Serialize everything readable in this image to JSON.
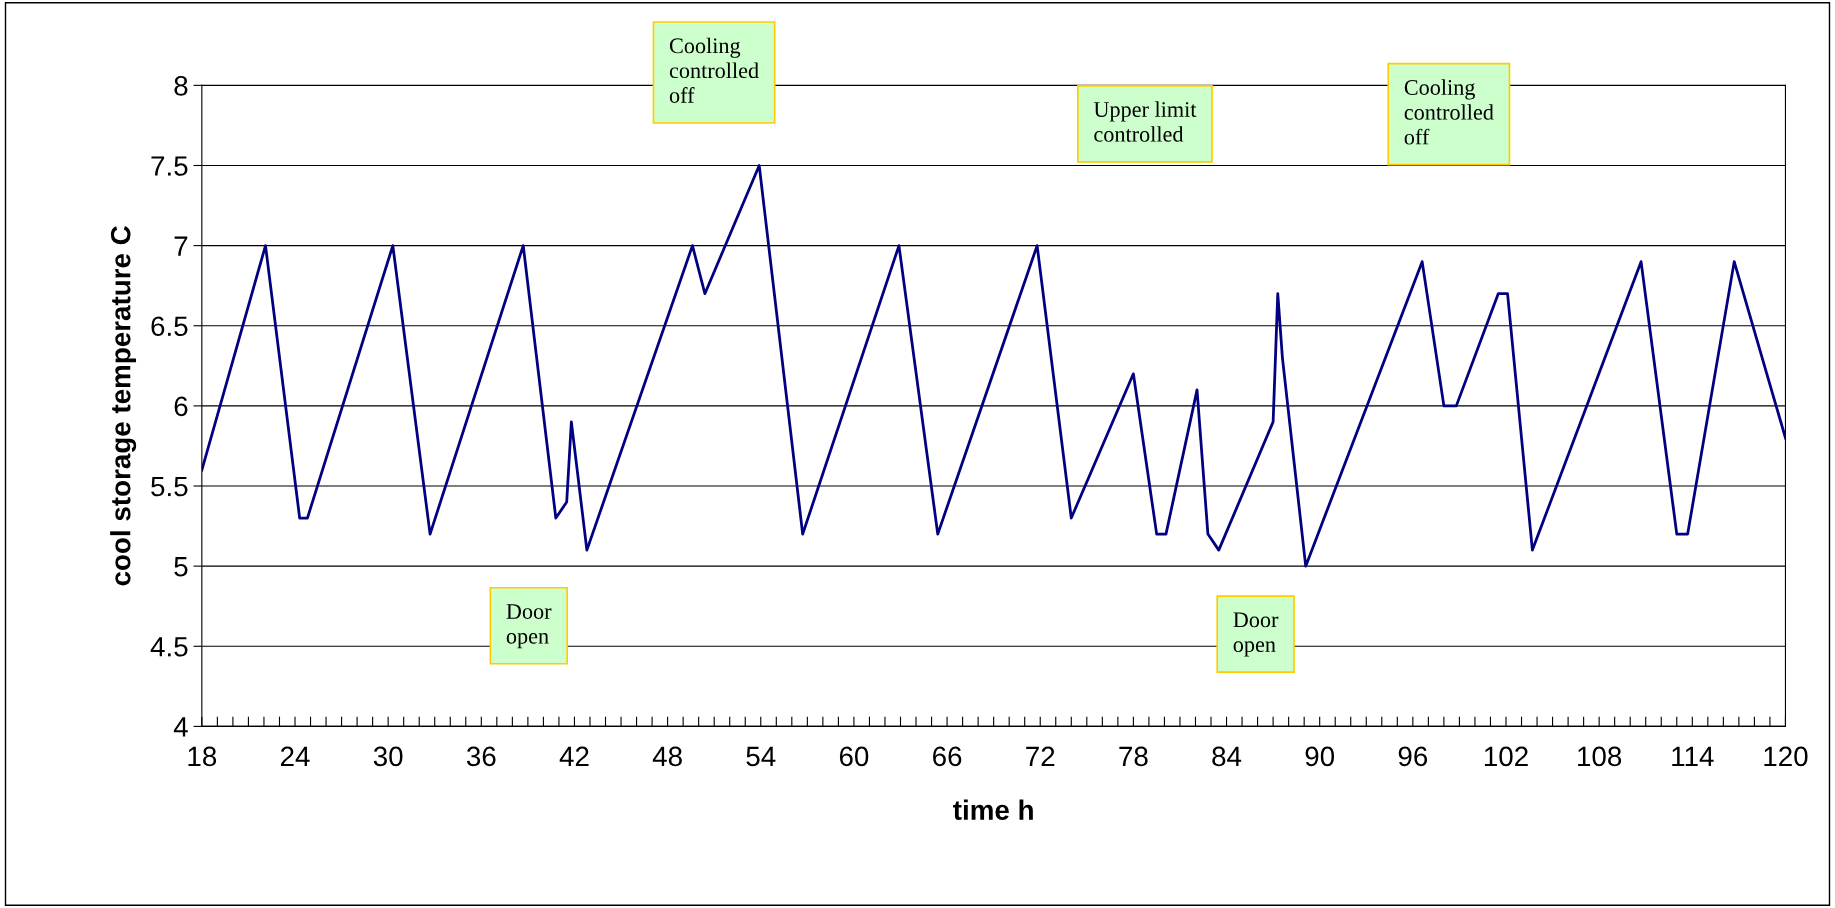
{
  "chart_data": {
    "type": "line",
    "xlabel": "time h",
    "ylabel": "cool storage temperature C",
    "xlim": [
      18,
      120
    ],
    "ylim": [
      4,
      8
    ],
    "xticks": [
      18,
      {
        "value": 19,
        "label": null
      },
      {
        "value": 20,
        "label": null
      },
      {
        "value": 21,
        "label": null
      },
      {
        "value": 22,
        "label": null
      },
      {
        "value": 23,
        "label": null
      },
      24,
      {
        "value": 25,
        "label": null
      },
      {
        "value": 26,
        "label": null
      },
      {
        "value": 27,
        "label": null
      },
      {
        "value": 28,
        "label": null
      },
      {
        "value": 29,
        "label": null
      },
      30,
      {
        "value": 31,
        "label": null
      },
      {
        "value": 32,
        "label": null
      },
      {
        "value": 33,
        "label": null
      },
      {
        "value": 34,
        "label": null
      },
      {
        "value": 35,
        "label": null
      },
      36,
      {
        "value": 37,
        "label": null
      },
      {
        "value": 38,
        "label": null
      },
      {
        "value": 39,
        "label": null
      },
      {
        "value": 40,
        "label": null
      },
      {
        "value": 41,
        "label": null
      },
      42,
      {
        "value": 43,
        "label": null
      },
      {
        "value": 44,
        "label": null
      },
      {
        "value": 45,
        "label": null
      },
      {
        "value": 46,
        "label": null
      },
      {
        "value": 47,
        "label": null
      },
      48,
      {
        "value": 49,
        "label": null
      },
      {
        "value": 50,
        "label": null
      },
      {
        "value": 51,
        "label": null
      },
      {
        "value": 52,
        "label": null
      },
      {
        "value": 53,
        "label": null
      },
      54,
      {
        "value": 55,
        "label": null
      },
      {
        "value": 56,
        "label": null
      },
      {
        "value": 57,
        "label": null
      },
      {
        "value": 58,
        "label": null
      },
      {
        "value": 59,
        "label": null
      },
      60,
      {
        "value": 61,
        "label": null
      },
      {
        "value": 62,
        "label": null
      },
      {
        "value": 63,
        "label": null
      },
      {
        "value": 64,
        "label": null
      },
      {
        "value": 65,
        "label": null
      },
      66,
      {
        "value": 67,
        "label": null
      },
      {
        "value": 68,
        "label": null
      },
      {
        "value": 69,
        "label": null
      },
      {
        "value": 70,
        "label": null
      },
      {
        "value": 71,
        "label": null
      },
      72,
      {
        "value": 73,
        "label": null
      },
      {
        "value": 74,
        "label": null
      },
      {
        "value": 75,
        "label": null
      },
      {
        "value": 76,
        "label": null
      },
      {
        "value": 77,
        "label": null
      },
      78,
      {
        "value": 79,
        "label": null
      },
      {
        "value": 80,
        "label": null
      },
      {
        "value": 81,
        "label": null
      },
      {
        "value": 82,
        "label": null
      },
      {
        "value": 83,
        "label": null
      },
      84,
      {
        "value": 85,
        "label": null
      },
      {
        "value": 86,
        "label": null
      },
      {
        "value": 87,
        "label": null
      },
      {
        "value": 88,
        "label": null
      },
      {
        "value": 89,
        "label": null
      },
      90,
      {
        "value": 91,
        "label": null
      },
      {
        "value": 92,
        "label": null
      },
      {
        "value": 93,
        "label": null
      },
      {
        "value": 94,
        "label": null
      },
      {
        "value": 95,
        "label": null
      },
      96,
      {
        "value": 97,
        "label": null
      },
      {
        "value": 98,
        "label": null
      },
      {
        "value": 99,
        "label": null
      },
      {
        "value": 100,
        "label": null
      },
      {
        "value": 101,
        "label": null
      },
      102,
      {
        "value": 103,
        "label": null
      },
      {
        "value": 104,
        "label": null
      },
      {
        "value": 105,
        "label": null
      },
      {
        "value": 106,
        "label": null
      },
      {
        "value": 107,
        "label": null
      },
      108,
      {
        "value": 109,
        "label": null
      },
      {
        "value": 110,
        "label": null
      },
      {
        "value": 111,
        "label": null
      },
      {
        "value": 112,
        "label": null
      },
      {
        "value": 113,
        "label": null
      },
      114,
      {
        "value": 115,
        "label": null
      },
      {
        "value": 116,
        "label": null
      },
      {
        "value": 117,
        "label": null
      },
      {
        "value": 118,
        "label": null
      },
      {
        "value": 119,
        "label": null
      },
      120
    ],
    "yticks": [
      4,
      4.5,
      5,
      5.5,
      6,
      6.5,
      7,
      7.5,
      8
    ],
    "grid": "y",
    "legend": false,
    "marker": "none",
    "line_style": "solid",
    "series": [
      {
        "color": "#000080",
        "x": [
          18,
          22.1,
          24.3,
          24.8,
          30.3,
          32.7,
          38.7,
          40.8,
          41.5,
          41.8,
          42.8,
          49.6,
          50.4,
          53.9,
          56.7,
          62.9,
          65.4,
          71.8,
          74.0,
          78.0,
          79.5,
          80.1,
          82.1,
          82.8,
          83.5,
          87.0,
          87.3,
          87.6,
          89.1,
          96.6,
          98.0,
          98.8,
          101.5,
          102.1,
          103.7,
          110.7,
          113.0,
          113.7,
          116.7,
          120
        ],
        "values": [
          5.6,
          7.0,
          5.3,
          5.3,
          7.0,
          5.2,
          7.0,
          5.3,
          5.4,
          5.9,
          5.1,
          7.0,
          6.7,
          7.5,
          5.2,
          7.0,
          5.2,
          7.0,
          5.3,
          6.2,
          5.2,
          5.2,
          6.1,
          5.2,
          5.1,
          5.9,
          6.7,
          6.3,
          5.0,
          6.9,
          6.0,
          6.0,
          6.7,
          6.7,
          5.1,
          6.9,
          5.2,
          5.2,
          6.9,
          5.8
        ]
      }
    ],
    "annotations": [
      "Door\nopen",
      "Cooling\ncontrolled\noff",
      "Upper limit\ncontrolled",
      "Cooling\ncontrolled\noff",
      "Door\nopen"
    ]
  }
}
